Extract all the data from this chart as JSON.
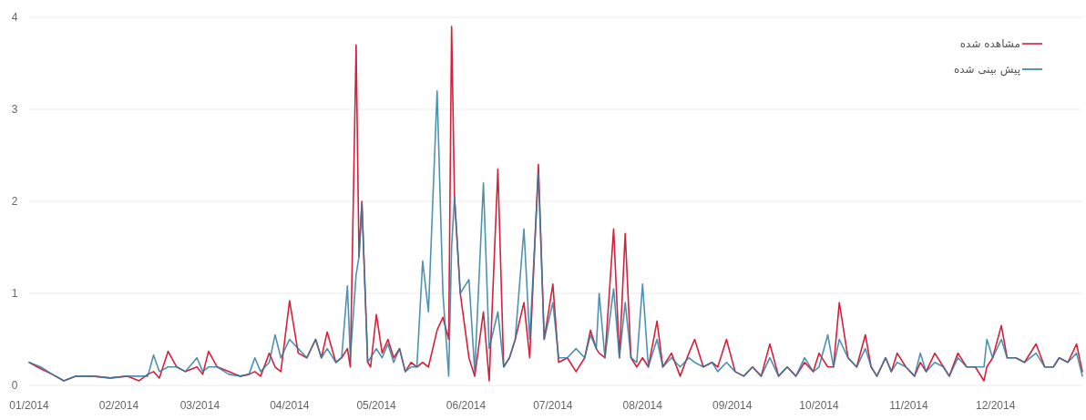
{
  "chart_data": {
    "type": "line",
    "x": [
      "2014-01-01",
      "2014-01-05",
      "2014-01-09",
      "2014-01-13",
      "2014-01-17",
      "2014-01-23",
      "2014-01-29",
      "2014-02-04",
      "2014-02-08",
      "2014-02-11",
      "2014-02-13",
      "2014-02-15",
      "2014-02-18",
      "2014-02-21",
      "2014-02-24",
      "2014-02-28",
      "2014-03-02",
      "2014-03-04",
      "2014-03-07",
      "2014-03-11",
      "2014-03-15",
      "2014-03-18",
      "2014-03-20",
      "2014-03-22",
      "2014-03-25",
      "2014-03-27",
      "2014-03-29",
      "2014-04-01",
      "2014-04-04",
      "2014-04-07",
      "2014-04-10",
      "2014-04-12",
      "2014-04-14",
      "2014-04-17",
      "2014-04-19",
      "2014-04-21",
      "2014-04-22",
      "2014-04-24",
      "2014-04-25",
      "2014-04-26",
      "2014-04-28",
      "2014-04-29",
      "2014-05-01",
      "2014-05-03",
      "2014-05-05",
      "2014-05-07",
      "2014-05-09",
      "2014-05-11",
      "2014-05-13",
      "2014-05-15",
      "2014-05-17",
      "2014-05-19",
      "2014-05-22",
      "2014-05-24",
      "2014-05-26",
      "2014-05-27",
      "2014-05-28",
      "2014-05-30",
      "2014-06-02",
      "2014-06-04",
      "2014-06-07",
      "2014-06-09",
      "2014-06-12",
      "2014-06-14",
      "2014-06-16",
      "2014-06-18",
      "2014-06-21",
      "2014-06-23",
      "2014-06-26",
      "2014-06-28",
      "2014-07-01",
      "2014-07-03",
      "2014-07-06",
      "2014-07-09",
      "2014-07-12",
      "2014-07-14",
      "2014-07-16",
      "2014-07-17",
      "2014-07-19",
      "2014-07-22",
      "2014-07-24",
      "2014-07-26",
      "2014-07-28",
      "2014-07-30",
      "2014-08-01",
      "2014-08-03",
      "2014-08-06",
      "2014-08-08",
      "2014-08-11",
      "2014-08-14",
      "2014-08-17",
      "2014-08-19",
      "2014-08-22",
      "2014-08-25",
      "2014-08-27",
      "2014-08-30",
      "2014-09-02",
      "2014-09-05",
      "2014-09-08",
      "2014-09-11",
      "2014-09-14",
      "2014-09-17",
      "2014-09-20",
      "2014-09-23",
      "2014-09-26",
      "2014-09-29",
      "2014-10-01",
      "2014-10-04",
      "2014-10-06",
      "2014-10-08",
      "2014-10-11",
      "2014-10-14",
      "2014-10-17",
      "2014-10-19",
      "2014-10-21",
      "2014-10-24",
      "2014-10-26",
      "2014-10-28",
      "2014-10-31",
      "2014-11-03",
      "2014-11-05",
      "2014-11-07",
      "2014-11-10",
      "2014-11-13",
      "2014-11-15",
      "2014-11-18",
      "2014-11-21",
      "2014-11-24",
      "2014-11-27",
      "2014-11-28",
      "2014-11-30",
      "2014-12-03",
      "2014-12-05",
      "2014-12-08",
      "2014-12-11",
      "2014-12-15",
      "2014-12-18",
      "2014-12-21",
      "2014-12-23",
      "2014-12-26",
      "2014-12-29",
      "2014-12-31"
    ],
    "series": [
      {
        "name": "مشاهده شده",
        "color": "#d6203c",
        "values": [
          0.25,
          0.18,
          0.12,
          0.05,
          0.1,
          0.1,
          0.08,
          0.1,
          0.05,
          0.12,
          0.15,
          0.08,
          0.37,
          0.2,
          0.15,
          0.2,
          0.12,
          0.37,
          0.2,
          0.15,
          0.1,
          0.12,
          0.15,
          0.1,
          0.35,
          0.2,
          0.15,
          0.92,
          0.35,
          0.3,
          0.5,
          0.3,
          0.58,
          0.25,
          0.3,
          0.4,
          0.2,
          3.7,
          1.4,
          2.0,
          0.25,
          0.2,
          0.77,
          0.35,
          0.5,
          0.3,
          0.4,
          0.15,
          0.25,
          0.2,
          0.25,
          0.2,
          0.6,
          0.74,
          0.5,
          3.9,
          2.05,
          1.0,
          0.3,
          0.1,
          0.8,
          0.05,
          2.35,
          0.2,
          0.3,
          0.5,
          0.9,
          0.3,
          2.4,
          0.5,
          1.1,
          0.25,
          0.3,
          0.15,
          0.3,
          0.6,
          0.4,
          0.35,
          0.3,
          1.7,
          0.3,
          1.65,
          0.3,
          0.2,
          0.3,
          0.2,
          0.7,
          0.2,
          0.35,
          0.1,
          0.35,
          0.5,
          0.2,
          0.25,
          0.2,
          0.5,
          0.15,
          0.1,
          0.2,
          0.1,
          0.45,
          0.1,
          0.2,
          0.1,
          0.25,
          0.15,
          0.35,
          0.2,
          0.2,
          0.9,
          0.3,
          0.2,
          0.55,
          0.2,
          0.1,
          0.3,
          0.15,
          0.35,
          0.2,
          0.1,
          0.25,
          0.15,
          0.35,
          0.2,
          0.1,
          0.35,
          0.2,
          0.2,
          0.05,
          0.2,
          0.3,
          0.65,
          0.3,
          0.3,
          0.25,
          0.45,
          0.2,
          0.2,
          0.3,
          0.25,
          0.45,
          0.15
        ]
      },
      {
        "name": "پیش بینی شده",
        "color": "#2f7fa3",
        "values": [
          0.25,
          0.2,
          0.12,
          0.05,
          0.1,
          0.1,
          0.08,
          0.1,
          0.1,
          0.1,
          0.33,
          0.15,
          0.2,
          0.2,
          0.15,
          0.3,
          0.15,
          0.2,
          0.2,
          0.12,
          0.1,
          0.12,
          0.3,
          0.15,
          0.25,
          0.55,
          0.3,
          0.5,
          0.4,
          0.3,
          0.5,
          0.3,
          0.4,
          0.25,
          0.3,
          1.08,
          0.3,
          1.2,
          1.4,
          1.98,
          0.25,
          0.3,
          0.4,
          0.3,
          0.45,
          0.25,
          0.4,
          0.15,
          0.2,
          0.2,
          1.35,
          0.8,
          3.2,
          1.0,
          0.1,
          1.5,
          2.05,
          1.0,
          1.15,
          0.15,
          2.2,
          0.4,
          0.8,
          0.2,
          0.3,
          0.5,
          1.7,
          0.5,
          2.3,
          0.5,
          0.9,
          0.3,
          0.3,
          0.4,
          0.3,
          0.55,
          0.4,
          1.0,
          0.3,
          1.05,
          0.3,
          0.9,
          0.3,
          0.25,
          1.1,
          0.2,
          0.5,
          0.2,
          0.3,
          0.2,
          0.3,
          0.25,
          0.2,
          0.25,
          0.15,
          0.25,
          0.15,
          0.1,
          0.2,
          0.1,
          0.3,
          0.1,
          0.2,
          0.1,
          0.3,
          0.15,
          0.2,
          0.55,
          0.2,
          0.5,
          0.3,
          0.2,
          0.4,
          0.2,
          0.1,
          0.3,
          0.15,
          0.25,
          0.2,
          0.1,
          0.35,
          0.15,
          0.25,
          0.2,
          0.1,
          0.3,
          0.2,
          0.2,
          0.2,
          0.5,
          0.3,
          0.5,
          0.3,
          0.3,
          0.25,
          0.35,
          0.2,
          0.2,
          0.3,
          0.25,
          0.35,
          0.1
        ]
      }
    ],
    "xlim": [
      "2014-01-01",
      "2014-12-31"
    ],
    "xticks": [
      {
        "value": "2014-01-01",
        "label": "01/2014"
      },
      {
        "value": "2014-02-01",
        "label": "02/2014"
      },
      {
        "value": "2014-03-01",
        "label": "03/2014"
      },
      {
        "value": "2014-04-01",
        "label": "04/2014"
      },
      {
        "value": "2014-05-01",
        "label": "05/2014"
      },
      {
        "value": "2014-06-01",
        "label": "06/2014"
      },
      {
        "value": "2014-07-01",
        "label": "07/2014"
      },
      {
        "value": "2014-08-01",
        "label": "08/2014"
      },
      {
        "value": "2014-09-01",
        "label": "09/2014"
      },
      {
        "value": "2014-10-01",
        "label": "10/2014"
      },
      {
        "value": "2014-11-01",
        "label": "11/2014"
      },
      {
        "value": "2014-12-01",
        "label": "12/2014"
      }
    ],
    "ylim": [
      0,
      4
    ],
    "yticks": [
      0,
      1,
      2,
      3,
      4
    ],
    "grid": "y",
    "legend": "top right",
    "marker": "none",
    "line_style": "solid"
  }
}
